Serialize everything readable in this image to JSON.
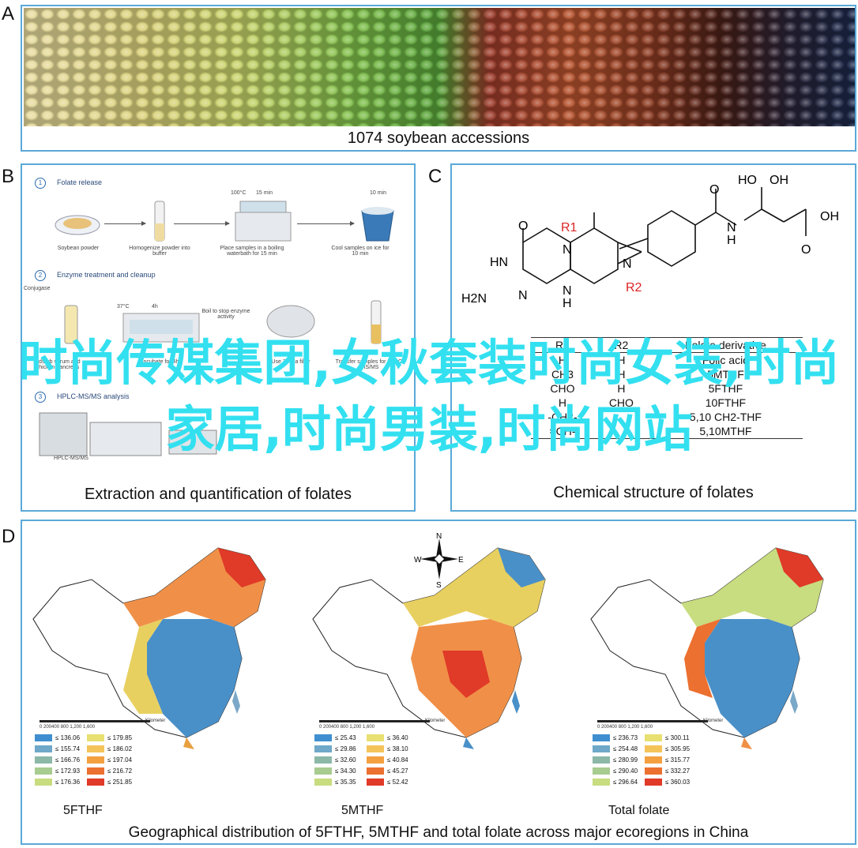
{
  "panels": {
    "a": {
      "letter": "A",
      "caption": "1074 soybean accessions"
    },
    "b": {
      "letter": "B",
      "caption": "Extraction and quantification of folates",
      "steps": [
        {
          "num": "1",
          "title": "Folate release"
        },
        {
          "num": "2",
          "title": "Enzyme treatment and cleanup"
        },
        {
          "num": "3",
          "title": "HPLC-MS/MS analysis"
        }
      ],
      "labels": {
        "soybean_powder": "Soybean powder",
        "homogenize": "Homogenize powder into buffer",
        "boiling": "Place samples in a boiling waterbath for 15 min",
        "cool": "Cool samples on ice for 10 min",
        "conjugase": "Conjugase",
        "boil_stop": "Boil to stop enzyme activity",
        "adsorb": "Adsorb serum and chicken pancreas",
        "incubate": "Incubate for 4h",
        "kda": "Use 3 KDa filter",
        "hplc_note": "Transfer samples for HPLC-MS/MS",
        "hplc": "HPLC-MS/MS",
        "temp1": "100°C",
        "time1": "15 min",
        "time2": "10 min",
        "temp2": "37°C",
        "time3": "4h"
      }
    },
    "c": {
      "letter": "C",
      "caption": "Chemical structure of folates",
      "table": {
        "headers": [
          "R1",
          "R2",
          "Folate derivative"
        ],
        "rows": [
          [
            "H",
            "H",
            "Folic acid"
          ],
          [
            "CH3",
            "H",
            "5MTHF"
          ],
          [
            "CHO",
            "H",
            "5FTHF"
          ],
          [
            "H",
            "CHO",
            "10FTHF"
          ],
          [
            "-CH2-",
            "",
            "5,10 CH2-THF"
          ],
          [
            "=CH-",
            "",
            "5,10MTHF"
          ]
        ]
      },
      "atoms": {
        "ho": "HO",
        "oh": "OH",
        "o": "O",
        "hn": "HN",
        "h2n": "H2N",
        "n": "N",
        "h": "H",
        "r1": "R1",
        "r2": "R2"
      }
    },
    "d": {
      "letter": "D",
      "caption": "Geographical distribution of 5FTHF, 5MTHF and total folate across major ecoregions in China",
      "compass": {
        "n": "N",
        "s": "S",
        "e": "E",
        "w": "W"
      },
      "scale": {
        "ticks": "0 200400   800  1,200  1,600",
        "unit": "Kilometer"
      },
      "maps": [
        {
          "name": "5FTHF",
          "legend": [
            "≤ 136.06",
            "≤ 155.74",
            "≤ 166.76",
            "≤ 172.93",
            "≤ 176.36",
            "≤ 179.85",
            "≤ 186.02",
            "≤ 197.04",
            "≤ 216.72",
            "≤ 251.85"
          ]
        },
        {
          "name": "5MTHF",
          "legend": [
            "≤ 25.43",
            "≤ 29.86",
            "≤ 32.60",
            "≤ 34.30",
            "≤ 35.35",
            "≤ 36.40",
            "≤ 38.10",
            "≤ 40.84",
            "≤ 45.27",
            "≤ 52.42"
          ]
        },
        {
          "name": "Total folate",
          "legend": [
            "≤ 236.73",
            "≤ 254.48",
            "≤ 280.99",
            "≤ 290.40",
            "≤ 296.64",
            "≤ 300.11",
            "≤ 305.95",
            "≤ 315.77",
            "≤ 332.27",
            "≤ 360.03"
          ]
        }
      ],
      "legend_colors": [
        "#3f8fd0",
        "#6fa8c8",
        "#8cb8a8",
        "#a8cc90",
        "#c8dc80",
        "#e8e070",
        "#f4c45a",
        "#f4a040",
        "#ec7030",
        "#e03a28"
      ]
    }
  },
  "overlay": {
    "text": "时尚传媒集团,女秋套装时尚女装,时尚家居,时尚男装,时尚网站"
  }
}
